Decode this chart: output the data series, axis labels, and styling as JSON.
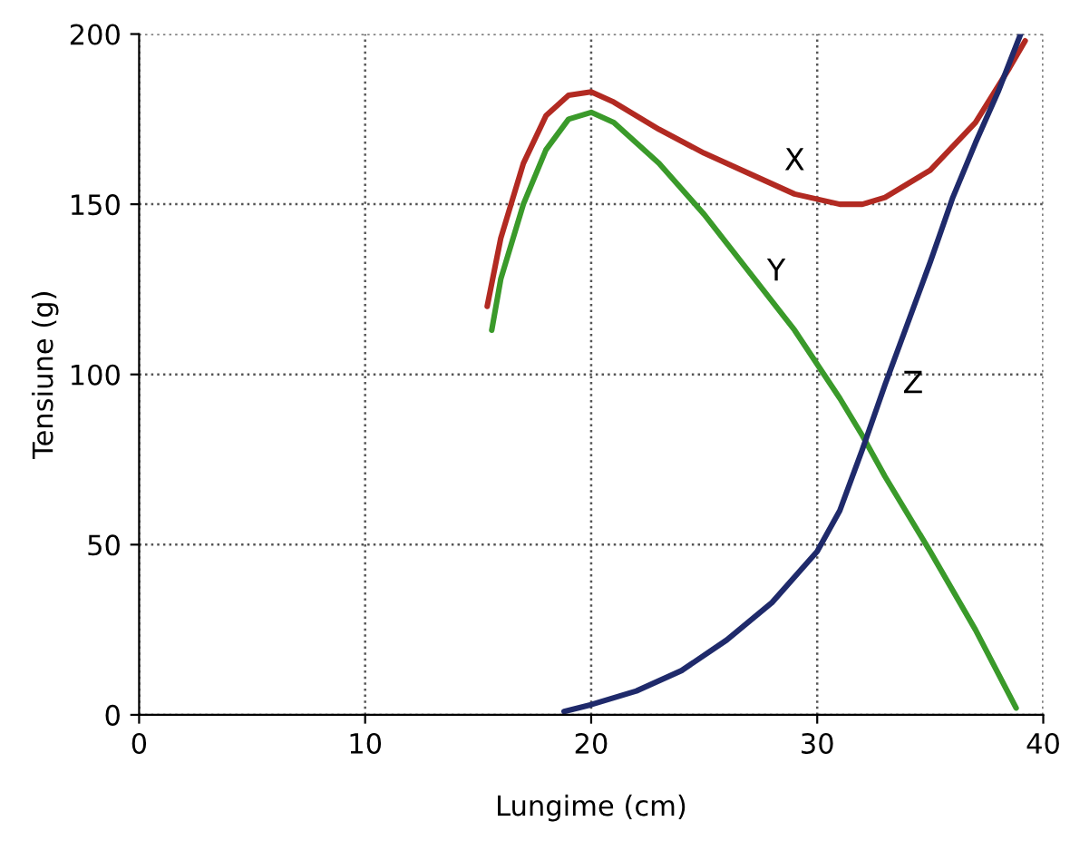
{
  "chart_data": {
    "type": "line",
    "xlabel": "Lungime (cm)",
    "ylabel": "Tensiune (g)",
    "xlim": [
      0,
      40
    ],
    "xticks": [
      0,
      10,
      20,
      30,
      40
    ],
    "ylim": [
      0,
      200
    ],
    "yticks": [
      0,
      50,
      100,
      150,
      200
    ],
    "grid": true,
    "line_style": "solid",
    "series": [
      {
        "name": "X",
        "color": "#b22a22",
        "x": [
          15.4,
          16,
          17,
          18,
          19,
          20,
          21,
          23,
          25,
          27,
          29,
          31,
          32,
          33,
          35,
          37,
          38.5,
          39.2
        ],
        "values": [
          120,
          140,
          162,
          176,
          182,
          183,
          180,
          172,
          165,
          159,
          153,
          150,
          150,
          152,
          160,
          174,
          190,
          198
        ]
      },
      {
        "name": "Y",
        "color": "#3a9a2a",
        "x": [
          15.6,
          16,
          17,
          18,
          19,
          20,
          21,
          23,
          25,
          27,
          29,
          31,
          32,
          33,
          35,
          37,
          38.8
        ],
        "values": [
          113,
          128,
          150,
          166,
          175,
          177,
          174,
          162,
          147,
          130,
          113,
          93,
          82,
          70,
          48,
          25,
          2
        ]
      },
      {
        "name": "Z",
        "color": "#1f2a6b",
        "x": [
          18.8,
          20,
          22,
          24,
          26,
          28,
          30,
          31,
          32,
          33,
          34,
          35,
          36,
          37,
          38,
          39
        ],
        "values": [
          1,
          3,
          7,
          13,
          22,
          33,
          48,
          60,
          78,
          97,
          115,
          133,
          152,
          168,
          183,
          200
        ]
      }
    ]
  }
}
